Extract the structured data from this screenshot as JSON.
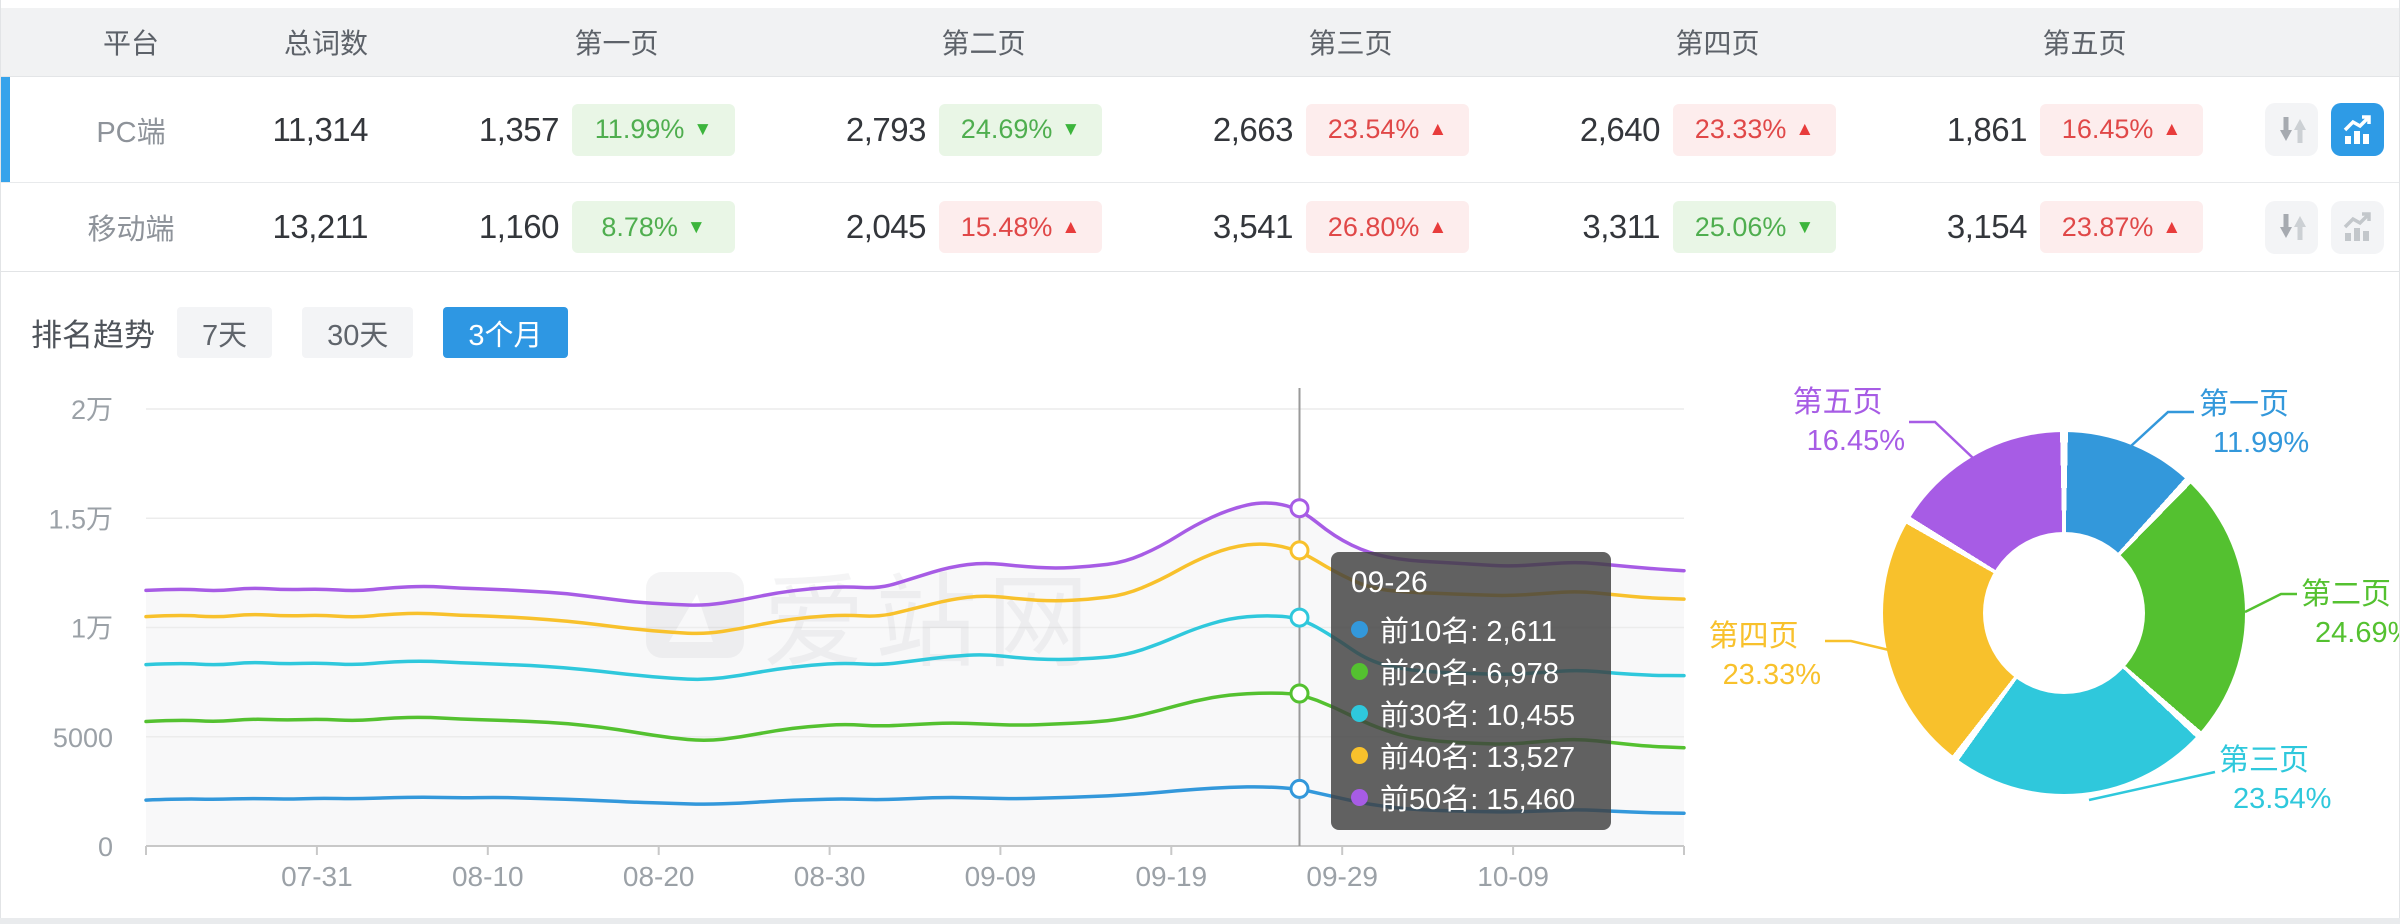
{
  "colors": {
    "accent": "#2e97e3",
    "selected_bar": "#36a3eb",
    "up_red": "#e04848",
    "down_green": "#4fae4f",
    "badge_green_bg": "#e9f6e6",
    "badge_red_bg": "#fdeded",
    "tooltip_bg": "rgba(64,64,64,0.82)"
  },
  "watermark": "爱站网",
  "table": {
    "columns": [
      "平台",
      "总词数",
      "第一页",
      "第二页",
      "第三页",
      "第四页",
      "第五页"
    ],
    "rows": [
      {
        "platform": "PC端",
        "total": "11,314",
        "selected": true,
        "pages": [
          {
            "count": "1,357",
            "pct": "11.99%",
            "dir": "down",
            "tone": "green"
          },
          {
            "count": "2,793",
            "pct": "24.69%",
            "dir": "down",
            "tone": "green"
          },
          {
            "count": "2,663",
            "pct": "23.54%",
            "dir": "up",
            "tone": "red"
          },
          {
            "count": "2,640",
            "pct": "23.33%",
            "dir": "up",
            "tone": "red"
          },
          {
            "count": "1,861",
            "pct": "16.45%",
            "dir": "up",
            "tone": "red"
          }
        ]
      },
      {
        "platform": "移动端",
        "total": "13,211",
        "selected": false,
        "pages": [
          {
            "count": "1,160",
            "pct": "8.78%",
            "dir": "down",
            "tone": "green"
          },
          {
            "count": "2,045",
            "pct": "15.48%",
            "dir": "up",
            "tone": "red"
          },
          {
            "count": "3,541",
            "pct": "26.80%",
            "dir": "up",
            "tone": "red"
          },
          {
            "count": "3,311",
            "pct": "25.06%",
            "dir": "down",
            "tone": "green"
          },
          {
            "count": "3,154",
            "pct": "23.87%",
            "dir": "up",
            "tone": "red"
          }
        ]
      }
    ]
  },
  "trend": {
    "title": "排名趋势",
    "tabs": [
      {
        "label": "7天",
        "active": false
      },
      {
        "label": "30天",
        "active": false
      },
      {
        "label": "3个月",
        "active": true
      }
    ]
  },
  "tooltip": {
    "title": "09-26",
    "rows": [
      {
        "name": "前10名",
        "value": "2,611",
        "color": "#3398db"
      },
      {
        "name": "前20名",
        "value": "6,978",
        "color": "#54c130"
      },
      {
        "name": "前30名",
        "value": "10,455",
        "color": "#2fc8dc"
      },
      {
        "name": "前40名",
        "value": "13,527",
        "color": "#f8c12c"
      },
      {
        "name": "前50名",
        "value": "15,460",
        "color": "#a75ce5"
      }
    ]
  },
  "chart_data": [
    {
      "type": "line",
      "title": "排名趋势 (3个月)",
      "ylim": [
        0,
        20000
      ],
      "grid": true,
      "y_tick_values": [
        0,
        5000,
        10000,
        15000,
        20000
      ],
      "y_tick_labels": [
        "0",
        "5000",
        "1万",
        "1.5万",
        "2万"
      ],
      "x_tick_labels": [
        "07-31",
        "08-10",
        "08-20",
        "08-30",
        "09-09",
        "09-19",
        "09-29",
        "10-09"
      ],
      "crosshair_index": 33,
      "crosshair_date": "09-26",
      "series": [
        {
          "name": "前10名",
          "color": "#3398db",
          "values": [
            2100,
            2160,
            2130,
            2180,
            2140,
            2190,
            2160,
            2210,
            2240,
            2200,
            2230,
            2190,
            2140,
            2080,
            2000,
            1950,
            1900,
            1960,
            2060,
            2120,
            2160,
            2110,
            2180,
            2230,
            2190,
            2160,
            2210,
            2260,
            2330,
            2450,
            2600,
            2690,
            2720,
            2611,
            2250,
            1900,
            1700,
            1620,
            1580,
            1550,
            1610,
            1670,
            1590,
            1520,
            1500
          ]
        },
        {
          "name": "前20名",
          "color": "#54c130",
          "values": [
            5700,
            5780,
            5680,
            5820,
            5760,
            5810,
            5720,
            5860,
            5900,
            5810,
            5760,
            5700,
            5610,
            5450,
            5200,
            4950,
            4800,
            4980,
            5280,
            5480,
            5580,
            5480,
            5560,
            5640,
            5580,
            5520,
            5580,
            5650,
            5820,
            6200,
            6650,
            6930,
            7010,
            6978,
            6350,
            5550,
            5000,
            4780,
            4700,
            4650,
            4800,
            4900,
            4720,
            4560,
            4500
          ]
        },
        {
          "name": "前30名",
          "color": "#2fc8dc",
          "values": [
            8300,
            8380,
            8270,
            8420,
            8330,
            8380,
            8280,
            8430,
            8470,
            8380,
            8330,
            8260,
            8160,
            8000,
            7820,
            7680,
            7600,
            7800,
            8090,
            8280,
            8380,
            8280,
            8480,
            8680,
            8780,
            8600,
            8520,
            8570,
            8720,
            9250,
            9950,
            10420,
            10560,
            10455,
            9550,
            8450,
            8080,
            7940,
            7890,
            7840,
            7950,
            8060,
            7910,
            7810,
            7800
          ]
        },
        {
          "name": "前40名",
          "color": "#f8c12c",
          "values": [
            10500,
            10580,
            10460,
            10620,
            10520,
            10570,
            10460,
            10620,
            10660,
            10560,
            10510,
            10420,
            10300,
            10120,
            9920,
            9780,
            9700,
            9940,
            10280,
            10480,
            10580,
            10480,
            10880,
            11280,
            11480,
            11300,
            11200,
            11290,
            11490,
            12150,
            13050,
            13680,
            13880,
            13527,
            12550,
            11800,
            11620,
            11560,
            11500,
            11450,
            11560,
            11660,
            11500,
            11350,
            11300
          ]
        },
        {
          "name": "前50名",
          "color": "#a75ce5",
          "values": [
            11700,
            11780,
            11660,
            11820,
            11720,
            11770,
            11660,
            11820,
            11900,
            11800,
            11750,
            11660,
            11560,
            11360,
            11160,
            11060,
            11000,
            11240,
            11580,
            11780,
            11880,
            11780,
            12280,
            12780,
            12980,
            12800,
            12700,
            12790,
            12990,
            13680,
            14680,
            15420,
            15780,
            15460,
            14150,
            13380,
            13080,
            12990,
            12890,
            12790,
            12900,
            13000,
            12850,
            12700,
            12600
          ]
        }
      ]
    },
    {
      "type": "pie",
      "donut": true,
      "slices": [
        {
          "label": "第一页",
          "pct": 11.99,
          "color": "#3398db"
        },
        {
          "label": "第二页",
          "pct": 24.69,
          "color": "#54c130"
        },
        {
          "label": "第三页",
          "pct": 23.54,
          "color": "#2fc8dc"
        },
        {
          "label": "第四页",
          "pct": 23.33,
          "color": "#f8c12c"
        },
        {
          "label": "第五页",
          "pct": 16.45,
          "color": "#a75ce5"
        }
      ]
    }
  ]
}
